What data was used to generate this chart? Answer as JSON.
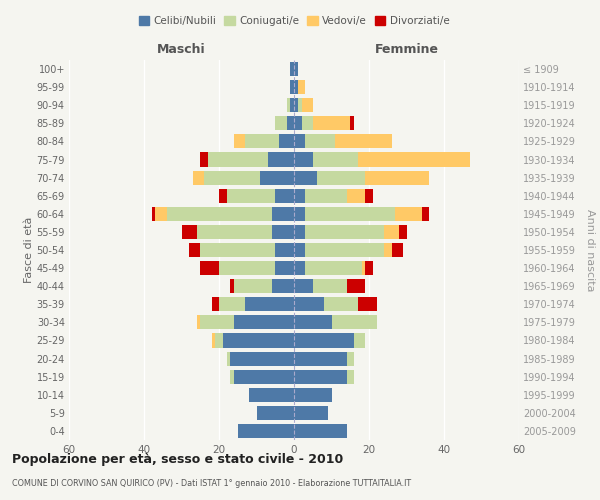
{
  "age_groups": [
    "0-4",
    "5-9",
    "10-14",
    "15-19",
    "20-24",
    "25-29",
    "30-34",
    "35-39",
    "40-44",
    "45-49",
    "50-54",
    "55-59",
    "60-64",
    "65-69",
    "70-74",
    "75-79",
    "80-84",
    "85-89",
    "90-94",
    "95-99",
    "100+"
  ],
  "birth_years": [
    "2005-2009",
    "2000-2004",
    "1995-1999",
    "1990-1994",
    "1985-1989",
    "1980-1984",
    "1975-1979",
    "1970-1974",
    "1965-1969",
    "1960-1964",
    "1955-1959",
    "1950-1954",
    "1945-1949",
    "1940-1944",
    "1935-1939",
    "1930-1934",
    "1925-1929",
    "1920-1924",
    "1915-1919",
    "1910-1914",
    "≤ 1909"
  ],
  "maschi": {
    "celibi": [
      15,
      10,
      12,
      16,
      17,
      19,
      16,
      13,
      6,
      5,
      5,
      6,
      6,
      5,
      9,
      7,
      4,
      2,
      1,
      1,
      1
    ],
    "coniugati": [
      0,
      0,
      0,
      1,
      1,
      2,
      9,
      7,
      10,
      15,
      20,
      20,
      28,
      13,
      15,
      16,
      9,
      3,
      1,
      0,
      0
    ],
    "vedovi": [
      0,
      0,
      0,
      0,
      0,
      1,
      1,
      0,
      0,
      0,
      0,
      0,
      3,
      0,
      3,
      0,
      3,
      0,
      0,
      0,
      0
    ],
    "divorziati": [
      0,
      0,
      0,
      0,
      0,
      0,
      0,
      2,
      1,
      5,
      3,
      4,
      1,
      2,
      0,
      2,
      0,
      0,
      0,
      0,
      0
    ]
  },
  "femmine": {
    "nubili": [
      14,
      9,
      10,
      14,
      14,
      16,
      10,
      8,
      5,
      3,
      3,
      3,
      3,
      3,
      6,
      5,
      3,
      2,
      1,
      1,
      1
    ],
    "coniugate": [
      0,
      0,
      0,
      2,
      2,
      3,
      12,
      9,
      9,
      15,
      21,
      21,
      24,
      11,
      13,
      12,
      8,
      3,
      1,
      0,
      0
    ],
    "vedove": [
      0,
      0,
      0,
      0,
      0,
      0,
      0,
      0,
      0,
      1,
      2,
      4,
      7,
      5,
      17,
      30,
      15,
      10,
      3,
      2,
      0
    ],
    "divorziate": [
      0,
      0,
      0,
      0,
      0,
      0,
      0,
      5,
      5,
      2,
      3,
      2,
      2,
      2,
      0,
      0,
      0,
      1,
      0,
      0,
      0
    ]
  },
  "colors": {
    "celibi": "#4e79a7",
    "coniugati": "#c5d9a0",
    "vedovi": "#ffc966",
    "divorziati": "#cc0000"
  },
  "xlim": 60,
  "title": "Popolazione per età, sesso e stato civile - 2010",
  "subtitle": "COMUNE DI CORVINO SAN QUIRICO (PV) - Dati ISTAT 1° gennaio 2010 - Elaborazione TUTTAITALIA.IT",
  "ylabel_left": "Fasce di età",
  "ylabel_right": "Anni di nascita",
  "legend_labels": [
    "Celibi/Nubili",
    "Coniugati/e",
    "Vedovi/e",
    "Divorziati/e"
  ],
  "bg_color": "#f5f5f0",
  "grid_color": "#ffffff",
  "maschi_label": "Maschi",
  "femmine_label": "Femmine"
}
